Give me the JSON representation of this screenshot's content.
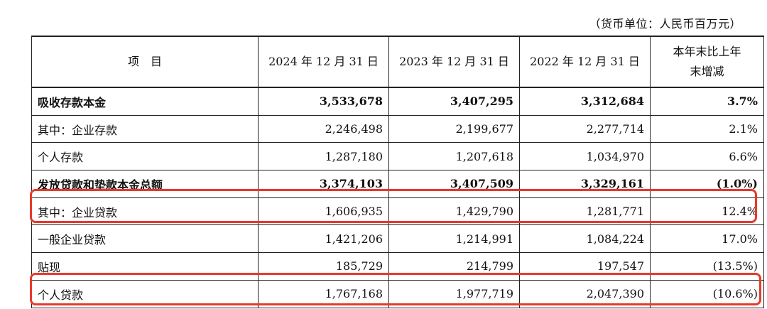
{
  "unit_note": "（货币单位：人民币百万元）",
  "table": {
    "headers": {
      "label": "项　目",
      "col_2024": "2024 年 12 月 31 日",
      "col_2023": "2023 年 12 月 31 日",
      "col_2022": "2022 年 12 月 31 日",
      "change_line1": "本年末比上年",
      "change_line2": "末增减"
    },
    "rows": [
      {
        "label": "吸收存款本金",
        "v2024": "3,533,678",
        "v2023": "3,407,295",
        "v2022": "3,312,684",
        "change": "3.7%"
      },
      {
        "label": "其中：企业存款",
        "v2024": "2,246,498",
        "v2023": "2,199,677",
        "v2022": "2,277,714",
        "change": "2.1%"
      },
      {
        "label": "个人存款",
        "v2024": "1,287,180",
        "v2023": "1,207,618",
        "v2022": "1,034,970",
        "change": "6.6%"
      },
      {
        "label": "发放贷款和垫款本金总额",
        "v2024": "3,374,103",
        "v2023": "3,407,509",
        "v2022": "3,329,161",
        "change": "(1.0%)"
      },
      {
        "label": "其中：企业贷款",
        "v2024": "1,606,935",
        "v2023": "1,429,790",
        "v2022": "1,281,771",
        "change": "12.4%"
      },
      {
        "label": "一般企业贷款",
        "v2024": "1,421,206",
        "v2023": "1,214,991",
        "v2022": "1,084,224",
        "change": "17.0%"
      },
      {
        "label": "贴现",
        "v2024": "185,729",
        "v2023": "214,799",
        "v2022": "197,547",
        "change": "(13.5%)"
      },
      {
        "label": "个人贷款",
        "v2024": "1,767,168",
        "v2023": "1,977,719",
        "v2022": "2,047,390",
        "change": "(10.6%)"
      }
    ]
  },
  "highlight_color": "#e8392a"
}
